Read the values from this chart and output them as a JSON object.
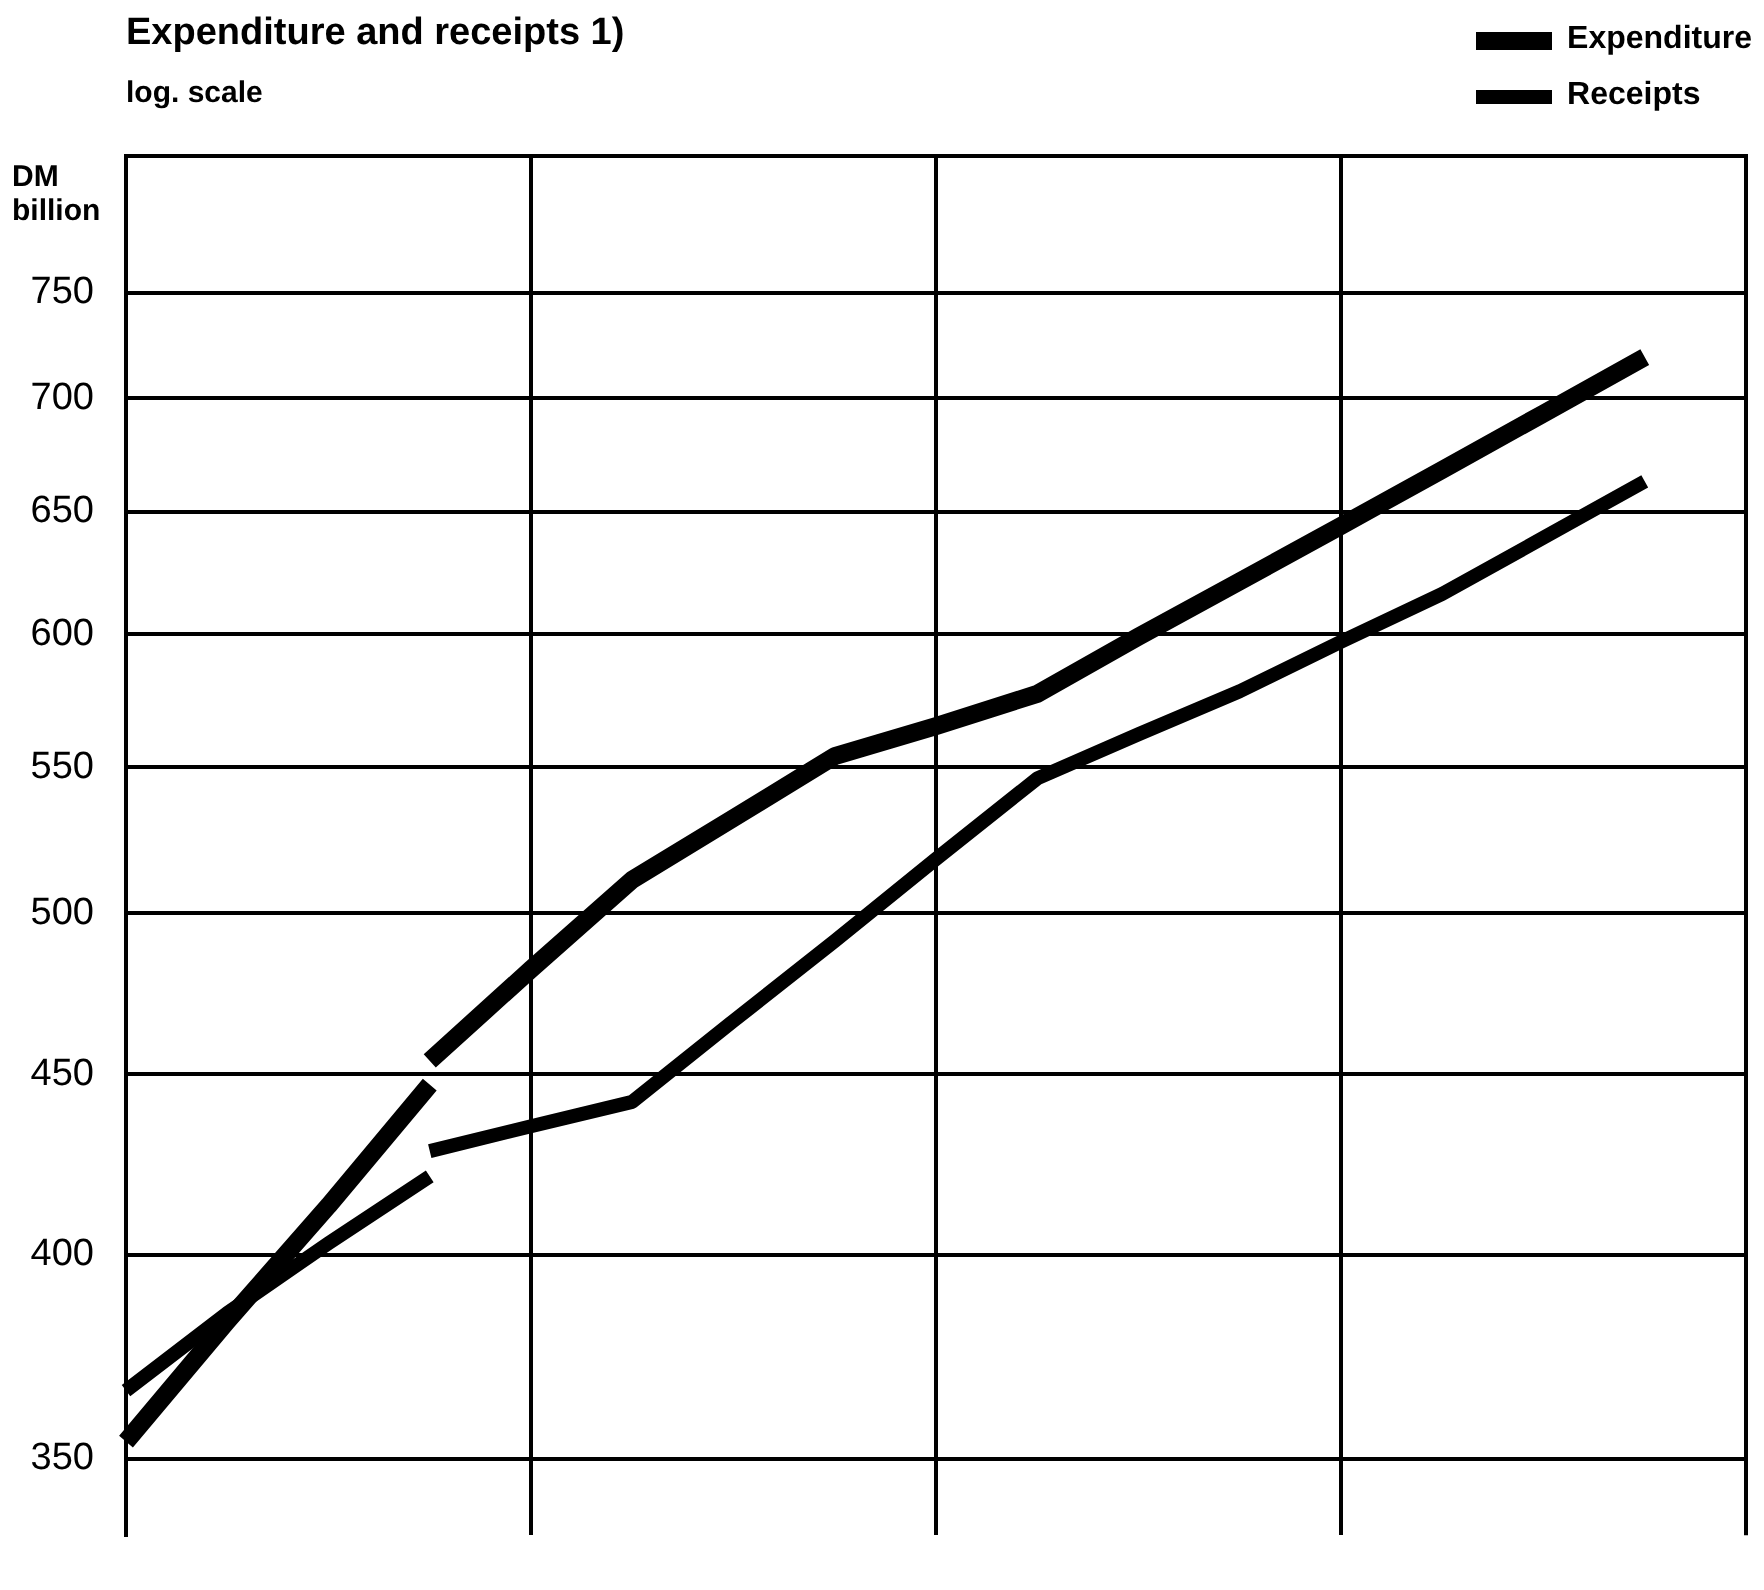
{
  "chart_data": {
    "type": "line",
    "title": "Expenditure and receipts 1)",
    "subtitle": "log. scale",
    "ylabel": "DM billion",
    "log": true,
    "grid": true,
    "legend": "top right",
    "marker": "none",
    "line_style": "solid",
    "tick_labels": "y",
    "categories": [
      null,
      null,
      null,
      null,
      null,
      null,
      null,
      null,
      null,
      null,
      null,
      null,
      null,
      null,
      null,
      null,
      null
    ],
    "ylim": [
      333,
      820
    ],
    "yticks": [
      350,
      400,
      450,
      500,
      550,
      600,
      650,
      700,
      750
    ],
    "series": [
      {
        "color": "#000000",
        "values": [
          354,
          383,
          413,
          447,
          null,
          null,
          null,
          null,
          null,
          null,
          null,
          null,
          null,
          null,
          null,
          null,
          null
        ]
      },
      {
        "name": "Expenditure",
        "color": "#000000",
        "values": [
          null,
          null,
          null,
          454,
          482,
          511,
          532,
          554,
          565,
          577,
          599,
          621,
          644,
          668,
          693,
          719,
          null
        ]
      },
      {
        "color": "#000000",
        "values": [
          366,
          385,
          403,
          421,
          null,
          null,
          null,
          null,
          null,
          null,
          null,
          null,
          null,
          null,
          null,
          null,
          null
        ]
      },
      {
        "name": "Receipts",
        "color": "#000000",
        "values": [
          null,
          null,
          null,
          428,
          435,
          442,
          466,
          491,
          518,
          546,
          562,
          578,
          597,
          616,
          639,
          663,
          null
        ]
      }
    ]
  }
}
